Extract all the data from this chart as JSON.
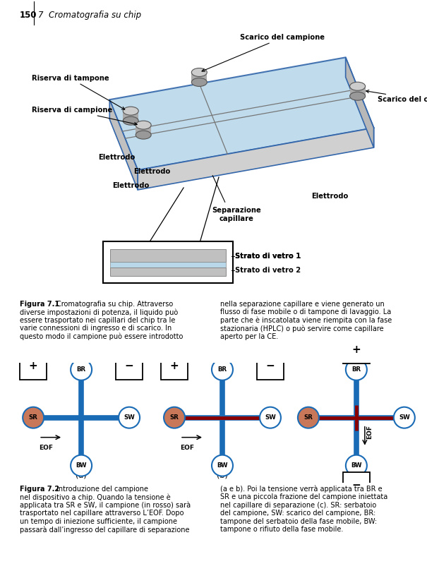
{
  "page_number": "150",
  "chapter_title": "7  Cromatografia su chip",
  "fig1_caption_bold": "Figura 7.1",
  "fig1_caption_first": "Cromatografia su chip. Attraverso",
  "fig1_caption_left": [
    "diverse impostazioni di potenza, il liquido può",
    "essere trasportato nei capillari del chip tra le",
    "varie connessioni di ingresso e di scarico. In",
    "questo modo il campione può essere introdotto"
  ],
  "fig1_caption_right": [
    "nella separazione capillare e viene generato un",
    "flusso di fase mobile o di tampone di lavaggio. La",
    "parte che è inscatolata viene riempita con la fase",
    "stazionaria (HPLC) o può servire come capillare",
    "aperto per la CE."
  ],
  "fig2_caption_bold": "Figura 7.2",
  "fig2_caption_first": "Introduzione del campione",
  "fig2_caption_left": [
    "nel dispositivo a chip. Quando la tensione è",
    "applicata tra SR e SW, il campione (in rosso) sarà",
    "trasportato nel capillare attraverso L’EOF. Dopo",
    "un tempo di iniezione sufficiente, il campione",
    "passarà dall’ingresso del capillare di separazione"
  ],
  "fig2_caption_right": [
    "(a e b). Poi la tensione verrà applicata tra BR e",
    "SR e una piccola frazione del campione iniettata",
    "nel capillare di separazione (c). SR: serbatoio",
    "del campione, SW: scarico del campione, BR:",
    "tampone del serbatoio della fase mobile, BW:",
    "tampone o rifiuto della fase mobile."
  ],
  "chip_color": "#b8d8ea",
  "chip_edge_color": "#3366aa",
  "side_color": "#bbbbbb",
  "blue_line_color": "#1a6bb5",
  "red_line_color": "#8b0000",
  "sr_color": "#c87858",
  "node_edge_color": "#1a6bb5",
  "riserva_tampone": "Riserva di tampone",
  "riserva_campione": "Riserva di campione",
  "scarico_top": "Scarico del campione",
  "scarico_right": "Scarico del campione",
  "elettrodo1": "Elettrodo",
  "elettrodo2": "Elettrodo",
  "elettrodo3": "Elettrodo",
  "elettrodo4": "Elettrodo",
  "sep_cap": "Separazione\ncapillare",
  "strato1": "Strato di vetro 1",
  "strato2": "Strato di vetro 2"
}
